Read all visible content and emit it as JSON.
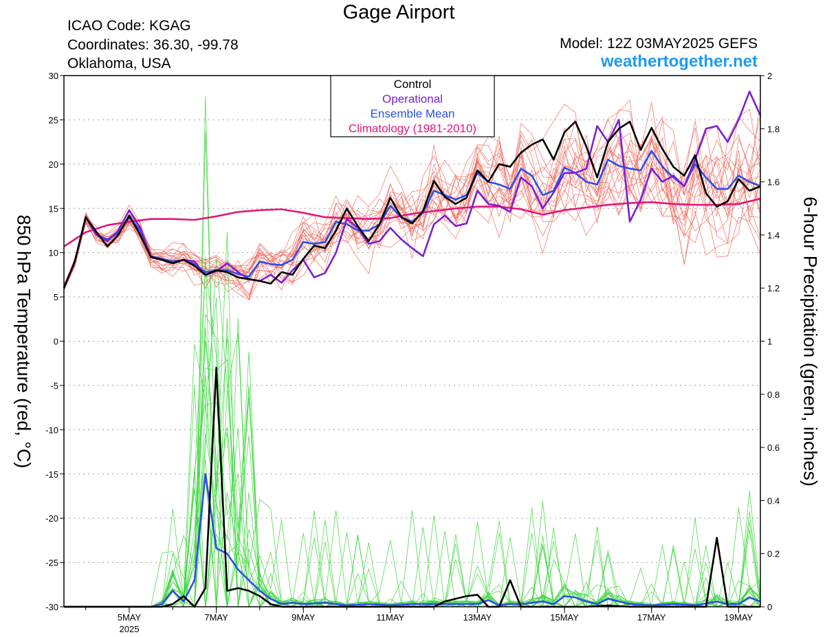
{
  "header": {
    "title": "Gage Airport",
    "icao": "ICAO Code: KGAG",
    "coords": "Coordinates: 36.30, -99.78",
    "region": "Oklahoma, USA",
    "model": "Model: 12Z 03MAY2025 GEFS",
    "site": "weathertogether.net"
  },
  "legend": [
    {
      "label": "Control",
      "color": "#000000"
    },
    {
      "label": "Operational",
      "color": "#7a1fd6"
    },
    {
      "label": "Ensemble Mean",
      "color": "#2b4fe8"
    },
    {
      "label": "Climatology (1981-2010)",
      "color": "#e6147a"
    }
  ],
  "chart_data": {
    "type": "line",
    "ylabel_left": "850 hPa Temperature (red, °C)",
    "ylabel_right": "6-hour Precipitation (green, inches)",
    "x_unit": "day of May 2025",
    "xlim": [
      3.5,
      19.5
    ],
    "ylim_left": [
      -30,
      30
    ],
    "ylim_right": [
      0,
      2
    ],
    "left_ticks": [
      30,
      25,
      20,
      15,
      10,
      5,
      0,
      -5,
      -10,
      -15,
      -20,
      -25,
      -30
    ],
    "right_ticks": [
      "2",
      "1.8",
      "1.6",
      "1.4",
      "1.2",
      "1",
      "0.8",
      "0.6",
      "0.4",
      "0.2",
      "0"
    ],
    "x_ticks": [
      {
        "day": 5,
        "label": "5MAY",
        "sub": "2025"
      },
      {
        "day": 7,
        "label": "7MAY",
        "sub": ""
      },
      {
        "day": 9,
        "label": "9MAY",
        "sub": ""
      },
      {
        "day": 11,
        "label": "11MAY",
        "sub": ""
      },
      {
        "day": 13,
        "label": "13MAY",
        "sub": ""
      },
      {
        "day": 15,
        "label": "15MAY",
        "sub": ""
      },
      {
        "day": 17,
        "label": "17MAY",
        "sub": ""
      },
      {
        "day": 19,
        "label": "19MAY",
        "sub": ""
      }
    ],
    "grid": true,
    "temperature": {
      "control": {
        "x": [
          3.5,
          3.75,
          4.0,
          4.25,
          4.5,
          4.75,
          5.0,
          5.25,
          5.5,
          5.75,
          6.0,
          6.25,
          6.5,
          6.75,
          7.0,
          7.25,
          7.5,
          7.75,
          8.0,
          8.25,
          8.5,
          8.75,
          9.0,
          9.25,
          9.5,
          9.75,
          10.0,
          10.25,
          10.5,
          10.75,
          11.0,
          11.25,
          11.5,
          11.75,
          12.0,
          12.25,
          12.5,
          12.75,
          13.0,
          13.25,
          13.5,
          13.75,
          14.0,
          14.25,
          14.5,
          14.75,
          15.0,
          15.25,
          15.5,
          15.75,
          16.0,
          16.25,
          16.5,
          16.75,
          17.0,
          17.25,
          17.5,
          17.75,
          18.0,
          18.25,
          18.5,
          18.75,
          19.0,
          19.25,
          19.5
        ],
        "y": [
          6,
          9,
          14,
          12.3,
          10.7,
          12,
          14.2,
          12,
          9.5,
          9.2,
          8.8,
          9.2,
          8.5,
          7.5,
          8,
          7.8,
          7.2,
          7,
          6.8,
          6.5,
          7.8,
          7.5,
          9.3,
          10.8,
          10.5,
          12.5,
          15,
          13,
          11.3,
          13.2,
          16.2,
          14,
          13.3,
          14.7,
          18.1,
          16.3,
          15.5,
          16.2,
          19.3,
          18,
          20,
          19.7,
          21.3,
          22.2,
          22.8,
          20.5,
          23.6,
          24.8,
          22,
          18.5,
          22.5,
          24,
          24.8,
          21.6,
          24.1,
          21.7,
          19.7,
          18.7,
          21,
          16.7,
          15.2,
          15.8,
          18.3,
          17,
          17.5
        ]
      },
      "operational": {
        "x": [
          3.5,
          3.75,
          4.0,
          4.25,
          4.5,
          4.75,
          5.0,
          5.25,
          5.5,
          5.75,
          6.0,
          6.25,
          6.5,
          6.75,
          7.0,
          7.25,
          7.5,
          7.75,
          8.0,
          8.25,
          8.5,
          8.75,
          9.0,
          9.25,
          9.5,
          9.75,
          10.0,
          10.25,
          10.5,
          10.75,
          11.0,
          11.25,
          11.5,
          11.75,
          12.0,
          12.25,
          12.5,
          12.75,
          13.0,
          13.25,
          13.5,
          13.75,
          14.0,
          14.25,
          14.5,
          14.75,
          15.0,
          15.25,
          15.5,
          15.75,
          16.0,
          16.25,
          16.5,
          16.75,
          17.0,
          17.25,
          17.5,
          17.75,
          18.0,
          18.25,
          18.5,
          18.75,
          19.0,
          19.25,
          19.5
        ],
        "y": [
          6,
          9,
          14,
          12,
          11.3,
          12.5,
          14.8,
          12.8,
          9.5,
          9.2,
          8.8,
          9.2,
          9,
          7.5,
          7.9,
          8.8,
          7.8,
          7,
          6.8,
          7.5,
          6.6,
          8,
          9.2,
          7.2,
          7.7,
          10,
          13.8,
          12.8,
          11,
          11.3,
          12.8,
          11.5,
          10.5,
          9.6,
          13.2,
          14.2,
          13,
          13.3,
          17,
          15.5,
          15.3,
          14.6,
          18.5,
          17.5,
          15,
          16.8,
          19,
          19,
          19.5,
          24.3,
          22.5,
          25,
          13.5,
          16,
          19.5,
          18,
          18.7,
          17.5,
          20.5,
          24,
          24.3,
          22.5,
          25,
          28.2,
          25.5
        ]
      },
      "ensemble_mean": {
        "x": [
          3.5,
          3.75,
          4.0,
          4.25,
          4.5,
          4.75,
          5.0,
          5.25,
          5.5,
          5.75,
          6.0,
          6.25,
          6.5,
          6.75,
          7.0,
          7.25,
          7.5,
          7.75,
          8.0,
          8.25,
          8.5,
          8.75,
          9.0,
          9.25,
          9.5,
          9.75,
          10.0,
          10.25,
          10.5,
          10.75,
          11.0,
          11.25,
          11.5,
          11.75,
          12.0,
          12.25,
          12.5,
          12.75,
          13.0,
          13.25,
          13.5,
          13.75,
          14.0,
          14.25,
          14.5,
          14.75,
          15.0,
          15.25,
          15.5,
          15.75,
          16.0,
          16.25,
          16.5,
          16.75,
          17.0,
          17.25,
          17.5,
          17.75,
          18.0,
          18.25,
          18.5,
          18.75,
          19.0,
          19.25,
          19.5
        ],
        "y": [
          6,
          9,
          14,
          12,
          11.5,
          12.2,
          14,
          12.5,
          9.6,
          9.3,
          9,
          9.2,
          8.7,
          7.8,
          8,
          8,
          7.6,
          7.3,
          9,
          8.7,
          8.6,
          9.2,
          11.2,
          11,
          11.2,
          13.5,
          13.2,
          12.5,
          12.5,
          13.2,
          15.3,
          14,
          13.5,
          14.5,
          17,
          16.5,
          16,
          16.5,
          19,
          18,
          17.7,
          17.2,
          19.5,
          18.7,
          16.5,
          17,
          19.6,
          19,
          18,
          17.7,
          20.5,
          19.8,
          19.5,
          19.3,
          21.5,
          19.7,
          18.5,
          17.5,
          20,
          18.5,
          17.2,
          17.2,
          18.7,
          18,
          17.5
        ]
      },
      "climatology": {
        "x": [
          3.5,
          4.0,
          4.5,
          5.0,
          5.5,
          6.0,
          6.5,
          7.0,
          7.5,
          8.0,
          8.5,
          9.0,
          9.5,
          10.0,
          10.5,
          11.0,
          11.5,
          12.0,
          12.5,
          13.0,
          13.5,
          14.0,
          14.5,
          15.0,
          15.5,
          16.0,
          16.5,
          17.0,
          17.5,
          18.0,
          18.5,
          19.0,
          19.5
        ],
        "y": [
          10.7,
          12.3,
          13.1,
          13.5,
          13.8,
          13.8,
          13.7,
          14.1,
          14.6,
          14.8,
          14.9,
          14.5,
          14.0,
          13.9,
          13.8,
          13.9,
          14.4,
          14.7,
          15.0,
          15.2,
          15.2,
          14.9,
          14.3,
          14.8,
          15.1,
          15.4,
          15.6,
          15.7,
          15.5,
          15.4,
          15.4,
          15.5,
          16.1
        ]
      }
    },
    "precipitation": {
      "control": {
        "x": [
          3.5,
          4.0,
          4.5,
          5.0,
          5.5,
          5.75,
          6.0,
          6.25,
          6.5,
          6.75,
          7.0,
          7.25,
          7.5,
          7.75,
          8.0,
          8.25,
          8.5,
          9.0,
          9.5,
          10.0,
          10.5,
          11.0,
          11.5,
          12.0,
          12.25,
          12.5,
          12.75,
          13.0,
          13.25,
          13.5,
          13.75,
          14.0,
          14.5,
          15.0,
          15.5,
          16.0,
          16.5,
          17.0,
          17.5,
          18.0,
          18.25,
          18.5,
          18.75,
          19.0,
          19.5
        ],
        "y": [
          0,
          0,
          0,
          0,
          0,
          0,
          0.01,
          0.04,
          0,
          0.07,
          0.9,
          0.06,
          0.07,
          0.06,
          0.04,
          0.01,
          0,
          0,
          0,
          0,
          0,
          0,
          0,
          0,
          0.02,
          0.03,
          0.04,
          0.045,
          0,
          0,
          0.1,
          0,
          0,
          0,
          0,
          0.005,
          0,
          0,
          0,
          0,
          0,
          0.26,
          0,
          0,
          0
        ]
      },
      "ensemble_mean": {
        "x": [
          3.5,
          4.0,
          4.5,
          5.0,
          5.5,
          5.75,
          6.0,
          6.25,
          6.5,
          6.75,
          7.0,
          7.25,
          7.5,
          7.75,
          8.0,
          8.25,
          8.5,
          8.75,
          9.0,
          9.5,
          10.0,
          10.5,
          11.0,
          11.5,
          12.0,
          12.5,
          13.0,
          13.25,
          13.5,
          13.75,
          14.0,
          14.5,
          14.75,
          15.0,
          15.25,
          15.5,
          15.75,
          16.0,
          16.25,
          16.5,
          17.0,
          17.5,
          18.0,
          18.5,
          18.75,
          19.0,
          19.25,
          19.5
        ],
        "y": [
          0,
          0,
          0,
          0,
          0,
          0.01,
          0.06,
          0.02,
          0.1,
          0.5,
          0.22,
          0.2,
          0.14,
          0.1,
          0.06,
          0.03,
          0.01,
          0.015,
          0.01,
          0.015,
          0.005,
          0.01,
          0.005,
          0.01,
          0.01,
          0.01,
          0.01,
          0.025,
          0.005,
          0.01,
          0.01,
          0.02,
          0.01,
          0.04,
          0.035,
          0.02,
          0.01,
          0.03,
          0.02,
          0.01,
          0.005,
          0.01,
          0.005,
          0.02,
          0.01,
          0.01,
          0.035,
          0.02
        ]
      }
    }
  }
}
